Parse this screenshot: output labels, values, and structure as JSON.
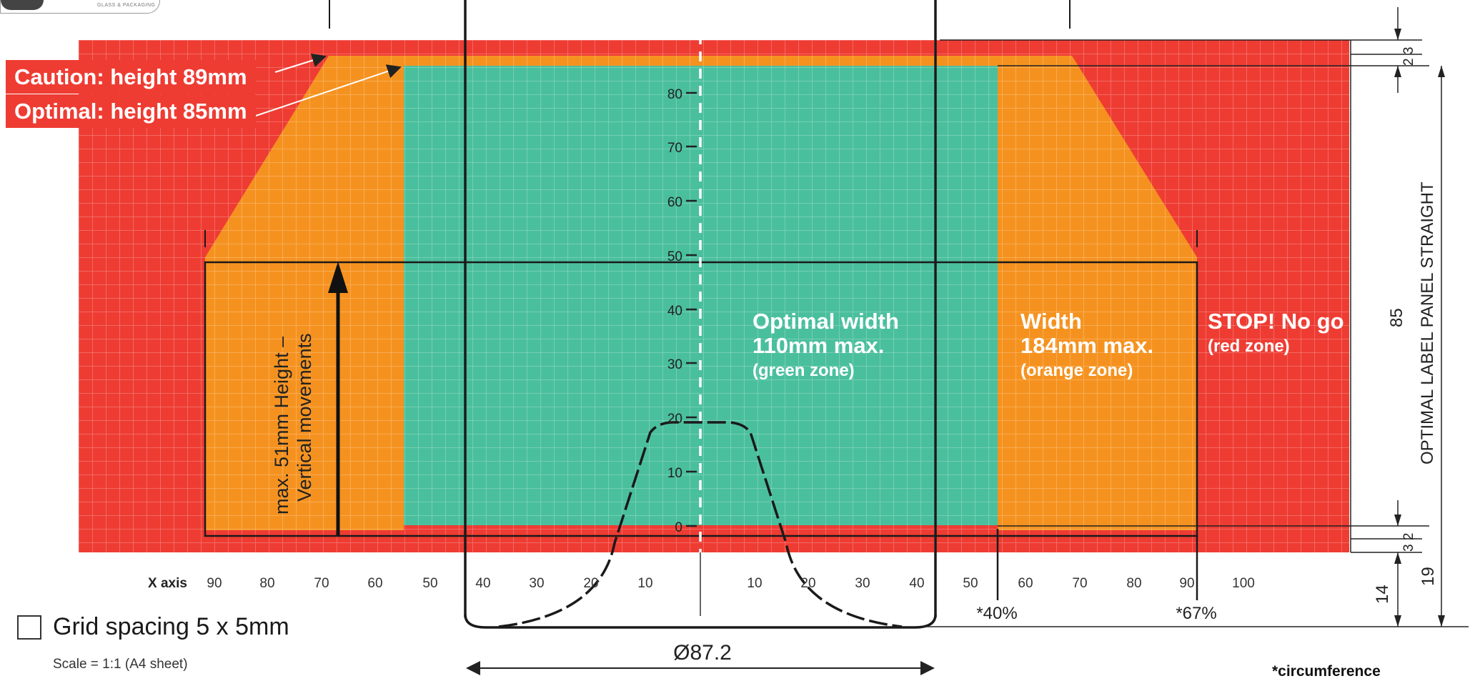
{
  "logo": {
    "text": "GLASS & PACKAGING"
  },
  "banners": {
    "caution": "Caution: height 89mm",
    "optimal": "Optimal: height 85mm"
  },
  "zones": {
    "green": {
      "line1": "Optimal width",
      "line2": "110mm max.",
      "line3": "(green zone)",
      "color": "#4abf9d"
    },
    "orange": {
      "line1": "Width",
      "line2": "184mm max.",
      "line3": "(orange zone)",
      "color": "#f5921f"
    },
    "red": {
      "line1": "STOP! No go",
      "line2": "(red zone)",
      "color": "#ee3c33"
    }
  },
  "vertical_note": {
    "line1": "max. 51mm Height –",
    "line2": "Vertical movements"
  },
  "y_axis_ticks": [
    "80",
    "70",
    "60",
    "50",
    "40",
    "30",
    "20",
    "10",
    "0"
  ],
  "x_axis": {
    "label": "X axis",
    "left_ticks": [
      "90",
      "80",
      "70",
      "60",
      "50",
      "40",
      "30",
      "20",
      "10"
    ],
    "right_ticks": [
      "10",
      "20",
      "30",
      "40",
      "50",
      "60",
      "70",
      "80",
      "90",
      "100"
    ]
  },
  "markers": {
    "m40": "*40%",
    "m67": "*67%"
  },
  "dimensions": {
    "diameter": "Ø87.2",
    "d23": "2 3",
    "d32": "3 2",
    "d85": "85",
    "d14": "14",
    "d19": "19",
    "panel_label": "OPTIMAL LABEL PANEL STRAIGHT"
  },
  "legend": {
    "grid": "Grid spacing 5 x 5mm",
    "scale": "Scale = 1:1 (A4 sheet)"
  },
  "footnote": "*circumference"
}
